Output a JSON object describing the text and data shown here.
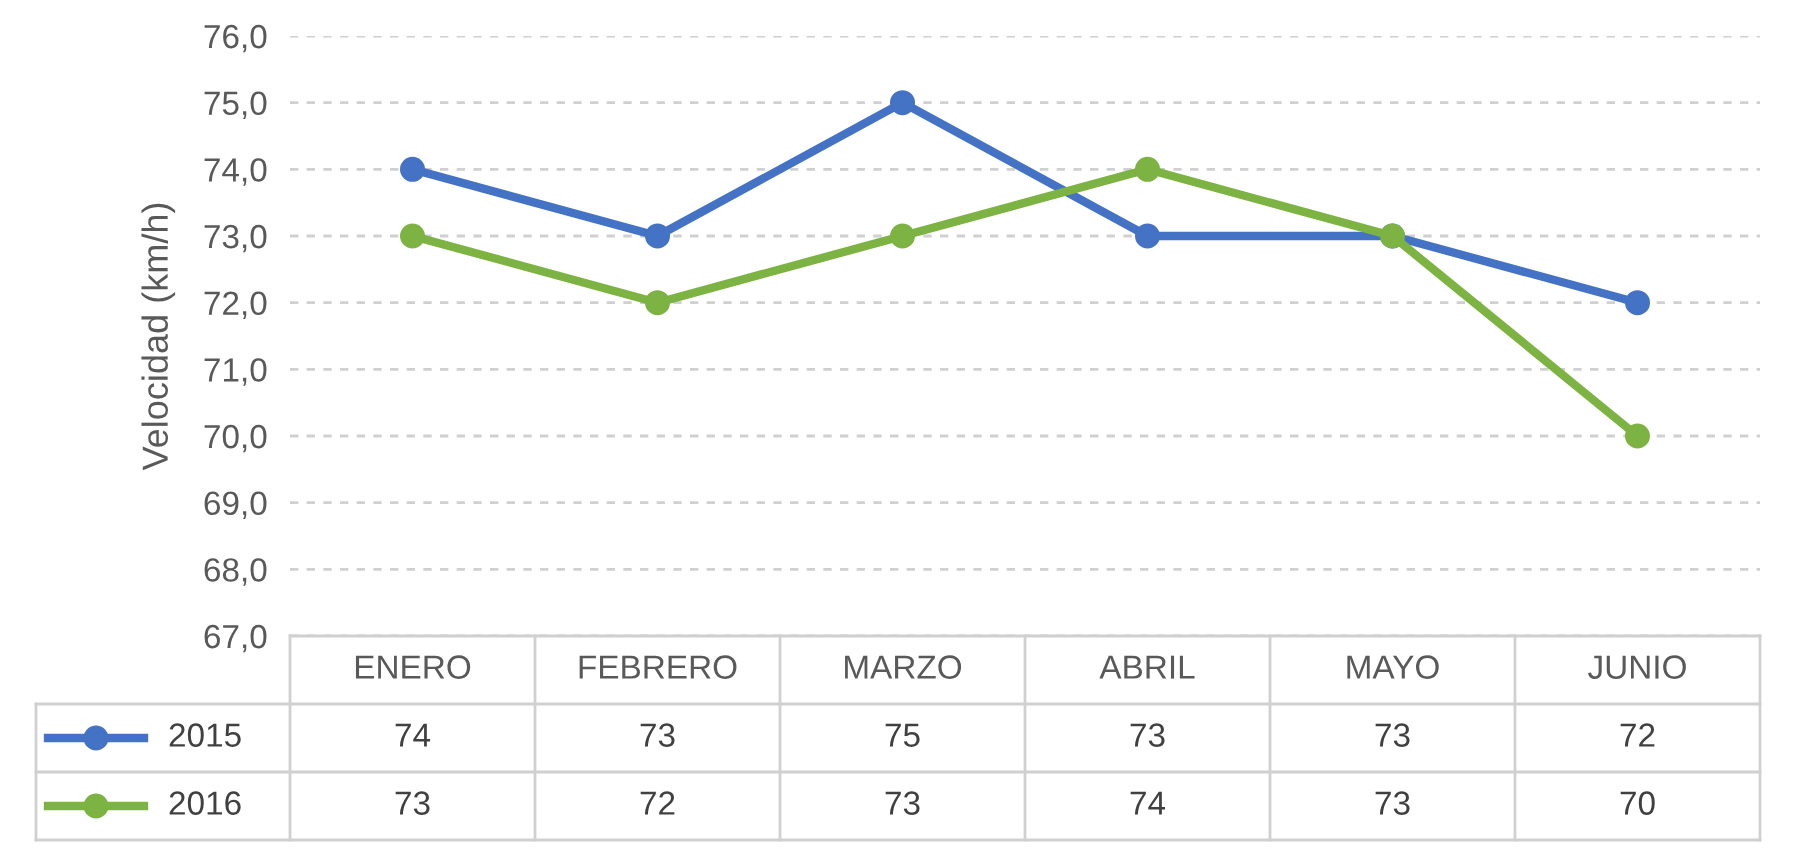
{
  "chart_data": {
    "type": "line",
    "ylabel": "Velocidad (km/h)",
    "categories": [
      "ENERO",
      "FEBRERO",
      "MARZO",
      "ABRIL",
      "MAYO",
      "JUNIO"
    ],
    "series": [
      {
        "name": "2015",
        "color": "#4472c4",
        "values": [
          74,
          73,
          75,
          73,
          73,
          72
        ]
      },
      {
        "name": "2016",
        "color": "#7cb342",
        "values": [
          73,
          72,
          73,
          74,
          73,
          70
        ]
      }
    ],
    "ylim": [
      67,
      76
    ],
    "yticks": [
      {
        "value": 67,
        "label": "67,0"
      },
      {
        "value": 68,
        "label": "68,0"
      },
      {
        "value": 69,
        "label": "69,0"
      },
      {
        "value": 70,
        "label": "70,0"
      },
      {
        "value": 71,
        "label": "71,0"
      },
      {
        "value": 72,
        "label": "72,0"
      },
      {
        "value": 73,
        "label": "73,0"
      },
      {
        "value": 74,
        "label": "74,0"
      },
      {
        "value": 75,
        "label": "75,0"
      },
      {
        "value": 76,
        "label": "76,0"
      }
    ],
    "grid": "y",
    "legend": "bottom left",
    "marker": "circle",
    "line_style": "solid",
    "data_labels": true
  }
}
